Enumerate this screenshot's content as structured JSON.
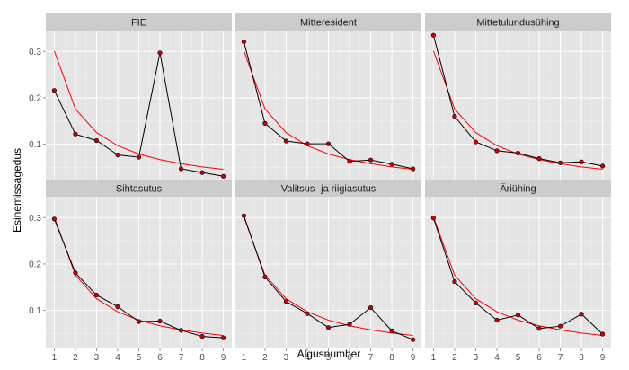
{
  "chart_data": {
    "type": "line",
    "xlabel": "Algusnumber",
    "ylabel": "Esinemissagedus",
    "x": [
      1,
      2,
      3,
      4,
      5,
      6,
      7,
      8,
      9
    ],
    "x_ticks": [
      "1",
      "2",
      "3",
      "4",
      "5",
      "6",
      "7",
      "8",
      "9"
    ],
    "xlim": [
      0.6,
      9.4
    ],
    "ylim": [
      0.018,
      0.345
    ],
    "y_ticks": [
      0.1,
      0.2,
      0.3
    ],
    "y_tick_labels": [
      "0.1",
      "0.2",
      "0.3"
    ],
    "facet_rows": 2,
    "facet_cols": 3,
    "grid": true,
    "colors": {
      "observed_line": "#000000",
      "observed_points": "#cc0000",
      "reference_line": "#ff0000",
      "panel_background": "#e5e5e5",
      "strip_background": "#cccccc"
    },
    "reference_curve": [
      0.301,
      0.176,
      0.125,
      0.097,
      0.079,
      0.067,
      0.058,
      0.051,
      0.046
    ],
    "panels": [
      {
        "title": "FIE",
        "values": [
          0.216,
          0.122,
          0.108,
          0.077,
          0.072,
          0.297,
          0.047,
          0.039,
          0.031
        ]
      },
      {
        "title": "Mitteresident",
        "values": [
          0.321,
          0.145,
          0.107,
          0.101,
          0.101,
          0.063,
          0.066,
          0.057,
          0.047
        ]
      },
      {
        "title": "Mittetulundusühing",
        "values": [
          0.335,
          0.16,
          0.105,
          0.086,
          0.081,
          0.069,
          0.06,
          0.062,
          0.053
        ]
      },
      {
        "title": "Sihtasutus",
        "values": [
          0.297,
          0.181,
          0.133,
          0.108,
          0.076,
          0.077,
          0.057,
          0.044,
          0.041
        ]
      },
      {
        "title": "Valitsus- ja riigiasutus",
        "values": [
          0.304,
          0.172,
          0.119,
          0.093,
          0.063,
          0.07,
          0.106,
          0.056,
          0.037
        ]
      },
      {
        "title": "Äriühing",
        "values": [
          0.299,
          0.162,
          0.116,
          0.079,
          0.09,
          0.061,
          0.066,
          0.092,
          0.049
        ]
      }
    ]
  }
}
